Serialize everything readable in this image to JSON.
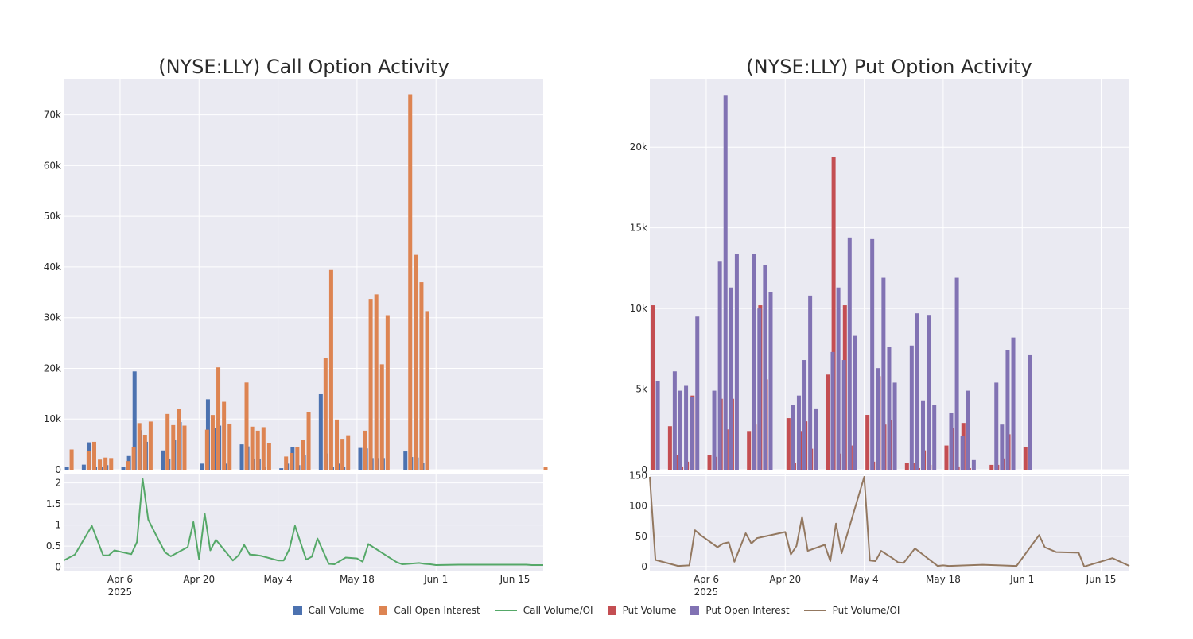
{
  "chart_data": [
    {
      "type": "bar",
      "title": "(NYSE:LLY) Call Option Activity",
      "xlabel": "",
      "ylabel": "",
      "ylim": [
        0,
        77000
      ],
      "yticks": [
        0,
        10000,
        20000,
        30000,
        40000,
        50000,
        60000,
        70000
      ],
      "ytick_labels": [
        "0",
        "10k",
        "20k",
        "30k",
        "40k",
        "50k",
        "60k",
        "70k"
      ],
      "x_tick_labels": [
        "Apr 6\n2025",
        "Apr 20",
        "May 4",
        "May 18",
        "Jun 1",
        "Jun 15"
      ],
      "x_tick_dates": [
        "2025-04-06",
        "2025-04-20",
        "2025-05-04",
        "2025-05-18",
        "2025-06-01",
        "2025-06-15"
      ],
      "x_range": [
        "2025-03-27",
        "2025-06-20"
      ],
      "grid": true,
      "series": [
        {
          "name": "Call Volume",
          "color": "#4c72b0",
          "type": "bar",
          "x": [
            "2025-03-28",
            "2025-03-31",
            "2025-04-01",
            "2025-04-02",
            "2025-04-03",
            "2025-04-04",
            "2025-04-07",
            "2025-04-08",
            "2025-04-09",
            "2025-04-10",
            "2025-04-11",
            "2025-04-14",
            "2025-04-15",
            "2025-04-16",
            "2025-04-17",
            "2025-04-21",
            "2025-04-22",
            "2025-04-23",
            "2025-04-24",
            "2025-04-25",
            "2025-04-28",
            "2025-04-29",
            "2025-04-30",
            "2025-05-01",
            "2025-05-02",
            "2025-05-05",
            "2025-05-06",
            "2025-05-07",
            "2025-05-08",
            "2025-05-09",
            "2025-05-12",
            "2025-05-13",
            "2025-05-14",
            "2025-05-15",
            "2025-05-16",
            "2025-05-19",
            "2025-05-20",
            "2025-05-21",
            "2025-05-22",
            "2025-05-23",
            "2025-05-27",
            "2025-05-28",
            "2025-05-29",
            "2025-05-30",
            "2025-06-02",
            "2025-06-03",
            "2025-06-04",
            "2025-06-05",
            "2025-06-06",
            "2025-06-09",
            "2025-06-10",
            "2025-06-11",
            "2025-06-12",
            "2025-06-13",
            "2025-06-16",
            "2025-06-17",
            "2025-06-18",
            "2025-06-20"
          ],
          "values": [
            600,
            1000,
            5400,
            500,
            600,
            900,
            500,
            2700,
            19400,
            7800,
            5500,
            3800,
            2200,
            5800,
            9400,
            1200,
            13900,
            8300,
            8700,
            1200,
            5000,
            4600,
            2200,
            2200,
            600,
            300,
            1200,
            4400,
            900,
            2900,
            14900,
            3200,
            500,
            1200,
            600,
            4300,
            4200,
            2300,
            2300,
            2300,
            3600,
            2500,
            2400,
            1300,
            0,
            0,
            0,
            0,
            0,
            0,
            0,
            0,
            0,
            0,
            0,
            0,
            0,
            0
          ]
        },
        {
          "name": "Call Open Interest",
          "color": "#dd8452",
          "type": "bar",
          "x": [
            "2025-03-28",
            "2025-03-31",
            "2025-04-01",
            "2025-04-02",
            "2025-04-03",
            "2025-04-04",
            "2025-04-07",
            "2025-04-08",
            "2025-04-09",
            "2025-04-10",
            "2025-04-11",
            "2025-04-14",
            "2025-04-15",
            "2025-04-16",
            "2025-04-17",
            "2025-04-21",
            "2025-04-22",
            "2025-04-23",
            "2025-04-24",
            "2025-04-25",
            "2025-04-28",
            "2025-04-29",
            "2025-04-30",
            "2025-05-01",
            "2025-05-02",
            "2025-05-05",
            "2025-05-06",
            "2025-05-07",
            "2025-05-08",
            "2025-05-09",
            "2025-05-12",
            "2025-05-13",
            "2025-05-14",
            "2025-05-15",
            "2025-05-16",
            "2025-05-19",
            "2025-05-20",
            "2025-05-21",
            "2025-05-22",
            "2025-05-23",
            "2025-05-27",
            "2025-05-28",
            "2025-05-29",
            "2025-05-30",
            "2025-06-02",
            "2025-06-03",
            "2025-06-04",
            "2025-06-05",
            "2025-06-06",
            "2025-06-09",
            "2025-06-10",
            "2025-06-11",
            "2025-06-12",
            "2025-06-13",
            "2025-06-16",
            "2025-06-17",
            "2025-06-18",
            "2025-06-20"
          ],
          "values": [
            4000,
            3700,
            5500,
            2000,
            2400,
            2300,
            1700,
            4500,
            9200,
            6900,
            9500,
            11000,
            8800,
            12000,
            8700,
            7900,
            10800,
            20200,
            13400,
            9100,
            17200,
            8500,
            7700,
            8400,
            5200,
            2600,
            3300,
            4500,
            5900,
            11400,
            22000,
            39400,
            9900,
            6100,
            6800,
            7700,
            33700,
            34600,
            20800,
            30500,
            74100,
            42400,
            37000,
            31300,
            0,
            0,
            0,
            0,
            0,
            0,
            0,
            0,
            0,
            0,
            0,
            0,
            0,
            600
          ]
        }
      ]
    },
    {
      "type": "line",
      "ylim": [
        -0.1,
        2.2
      ],
      "yticks": [
        0,
        0.5,
        1,
        1.5,
        2
      ],
      "ytick_labels": [
        "0",
        "0.5",
        "1",
        "1.5",
        "2"
      ],
      "series": [
        {
          "name": "Call Volume/OI",
          "color": "#55a868",
          "x": [
            "2025-03-27",
            "2025-03-29",
            "2025-04-01",
            "2025-04-03",
            "2025-04-04",
            "2025-04-05",
            "2025-04-08",
            "2025-04-09",
            "2025-04-10",
            "2025-04-11",
            "2025-04-13",
            "2025-04-14",
            "2025-04-15",
            "2025-04-18",
            "2025-04-19",
            "2025-04-20",
            "2025-04-21",
            "2025-04-22",
            "2025-04-23",
            "2025-04-26",
            "2025-04-27",
            "2025-04-28",
            "2025-04-29",
            "2025-04-30",
            "2025-05-01",
            "2025-05-04",
            "2025-05-05",
            "2025-05-06",
            "2025-05-07",
            "2025-05-09",
            "2025-05-10",
            "2025-05-11",
            "2025-05-13",
            "2025-05-14",
            "2025-05-16",
            "2025-05-18",
            "2025-05-19",
            "2025-05-20",
            "2025-05-25",
            "2025-05-26",
            "2025-05-29",
            "2025-05-30",
            "2025-05-31",
            "2025-06-01",
            "2025-06-05",
            "2025-06-11",
            "2025-06-12",
            "2025-06-16",
            "2025-06-17",
            "2025-06-18",
            "2025-06-20"
          ],
          "values": [
            0.16,
            0.3,
            0.98,
            0.28,
            0.28,
            0.4,
            0.31,
            0.6,
            2.1,
            1.13,
            0.6,
            0.35,
            0.26,
            0.48,
            1.07,
            0.19,
            1.27,
            0.4,
            0.65,
            0.16,
            0.28,
            0.53,
            0.3,
            0.29,
            0.27,
            0.16,
            0.16,
            0.43,
            0.98,
            0.18,
            0.25,
            0.68,
            0.08,
            0.07,
            0.23,
            0.21,
            0.13,
            0.55,
            0.12,
            0.07,
            0.1,
            0.08,
            0.07,
            0.05,
            0.06,
            0.06,
            0.06,
            0.06,
            0.06,
            0.05,
            0.05
          ]
        }
      ]
    },
    {
      "type": "bar",
      "title": "(NYSE:LLY) Put Option Activity",
      "ylim": [
        0,
        24200
      ],
      "yticks": [
        0,
        5000,
        10000,
        15000,
        20000
      ],
      "ytick_labels": [
        "0",
        "5k",
        "10k",
        "15k",
        "20k"
      ],
      "x_tick_labels": [
        "Apr 6\n2025",
        "Apr 20",
        "May 4",
        "May 18",
        "Jun 1",
        "Jun 15"
      ],
      "x_tick_dates": [
        "2025-04-06",
        "2025-04-20",
        "2025-05-04",
        "2025-05-18",
        "2025-06-01",
        "2025-06-15"
      ],
      "x_range": [
        "2025-03-27",
        "2025-06-20"
      ],
      "grid": true,
      "series": [
        {
          "name": "Put Volume",
          "color": "#c44e52",
          "type": "bar",
          "x": [
            "2025-03-28",
            "2025-03-31",
            "2025-04-01",
            "2025-04-02",
            "2025-04-03",
            "2025-04-04",
            "2025-04-07",
            "2025-04-08",
            "2025-04-09",
            "2025-04-10",
            "2025-04-11",
            "2025-04-14",
            "2025-04-15",
            "2025-04-16",
            "2025-04-17",
            "2025-04-21",
            "2025-04-22",
            "2025-04-23",
            "2025-04-24",
            "2025-04-25",
            "2025-04-28",
            "2025-04-29",
            "2025-04-30",
            "2025-05-01",
            "2025-05-02",
            "2025-05-05",
            "2025-05-06",
            "2025-05-07",
            "2025-05-08",
            "2025-05-09",
            "2025-05-12",
            "2025-05-13",
            "2025-05-14",
            "2025-05-15",
            "2025-05-16",
            "2025-05-19",
            "2025-05-20",
            "2025-05-21",
            "2025-05-22",
            "2025-05-23",
            "2025-05-27",
            "2025-05-28",
            "2025-05-29",
            "2025-05-30",
            "2025-06-02",
            "2025-06-03",
            "2025-06-04",
            "2025-06-05",
            "2025-06-06",
            "2025-06-09",
            "2025-06-10",
            "2025-06-11",
            "2025-06-12",
            "2025-06-13",
            "2025-06-16",
            "2025-06-17",
            "2025-06-18",
            "2025-06-20"
          ],
          "values": [
            10200,
            2700,
            900,
            200,
            500,
            4600,
            900,
            800,
            4400,
            2500,
            4400,
            2400,
            2800,
            10200,
            5600,
            3200,
            400,
            2400,
            3000,
            1300,
            5900,
            19400,
            1000,
            10200,
            1500,
            3400,
            500,
            5800,
            2800,
            3100,
            400,
            400,
            100,
            1200,
            300,
            1500,
            2600,
            200,
            2900,
            100,
            300,
            300,
            700,
            2200,
            1400,
            0,
            0,
            0,
            0,
            0,
            0,
            0,
            0,
            0,
            0,
            0,
            0,
            0
          ]
        },
        {
          "name": "Put Open Interest",
          "color": "#8172b3",
          "type": "bar",
          "x": [
            "2025-03-28",
            "2025-03-31",
            "2025-04-01",
            "2025-04-02",
            "2025-04-03",
            "2025-04-04",
            "2025-04-07",
            "2025-04-08",
            "2025-04-09",
            "2025-04-10",
            "2025-04-11",
            "2025-04-14",
            "2025-04-15",
            "2025-04-16",
            "2025-04-17",
            "2025-04-21",
            "2025-04-22",
            "2025-04-23",
            "2025-04-24",
            "2025-04-25",
            "2025-04-28",
            "2025-04-29",
            "2025-04-30",
            "2025-05-01",
            "2025-05-02",
            "2025-05-05",
            "2025-05-06",
            "2025-05-07",
            "2025-05-08",
            "2025-05-09",
            "2025-05-12",
            "2025-05-13",
            "2025-05-14",
            "2025-05-15",
            "2025-05-16",
            "2025-05-19",
            "2025-05-20",
            "2025-05-21",
            "2025-05-22",
            "2025-05-23",
            "2025-05-27",
            "2025-05-28",
            "2025-05-29",
            "2025-05-30",
            "2025-06-02",
            "2025-06-03",
            "2025-06-04",
            "2025-06-05",
            "2025-06-06",
            "2025-06-09",
            "2025-06-10",
            "2025-06-11",
            "2025-06-12",
            "2025-06-13",
            "2025-06-16",
            "2025-06-17",
            "2025-06-18",
            "2025-06-20"
          ],
          "values": [
            5500,
            6100,
            4900,
            5200,
            4500,
            9500,
            4900,
            12900,
            23200,
            11300,
            13400,
            13400,
            10000,
            12700,
            11000,
            4000,
            4600,
            6800,
            10800,
            3800,
            7300,
            11300,
            6800,
            14400,
            8300,
            14300,
            6300,
            11900,
            7600,
            5400,
            7700,
            9700,
            4300,
            9600,
            4000,
            3500,
            11900,
            2100,
            4900,
            600,
            5400,
            2800,
            7400,
            8200,
            7100,
            0,
            0,
            0,
            0,
            0,
            0,
            0,
            0,
            0,
            0,
            0,
            0,
            0
          ]
        }
      ]
    },
    {
      "type": "line",
      "ylim": [
        -8,
        152
      ],
      "yticks": [
        0,
        50,
        100,
        150
      ],
      "ytick_labels": [
        "0",
        "50",
        "100",
        "150"
      ],
      "series": [
        {
          "name": "Put Volume/OI",
          "color": "#937860",
          "x": [
            "2025-03-27",
            "2025-03-28",
            "2025-04-01",
            "2025-04-03",
            "2025-04-04",
            "2025-04-05",
            "2025-04-08",
            "2025-04-09",
            "2025-04-10",
            "2025-04-11",
            "2025-04-13",
            "2025-04-14",
            "2025-04-15",
            "2025-04-20",
            "2025-04-21",
            "2025-04-22",
            "2025-04-23",
            "2025-04-24",
            "2025-04-27",
            "2025-04-28",
            "2025-04-29",
            "2025-04-30",
            "2025-05-04",
            "2025-05-05",
            "2025-05-06",
            "2025-05-07",
            "2025-05-09",
            "2025-05-10",
            "2025-05-11",
            "2025-05-13",
            "2025-05-17",
            "2025-05-18",
            "2025-05-19",
            "2025-05-25",
            "2025-05-31",
            "2025-06-04",
            "2025-06-05",
            "2025-06-07",
            "2025-06-11",
            "2025-06-12",
            "2025-06-17",
            "2025-06-20"
          ],
          "values": [
            148,
            11,
            1,
            2,
            60,
            52,
            32,
            38,
            40,
            8,
            55,
            38,
            47,
            57,
            20,
            34,
            82,
            26,
            36,
            9,
            71,
            22,
            148,
            10,
            9,
            26,
            14,
            7,
            6,
            30,
            1,
            2,
            1,
            3,
            1,
            52,
            32,
            24,
            23,
            0,
            14,
            1
          ]
        }
      ]
    }
  ],
  "legend": {
    "items": [
      {
        "label": "Call Volume",
        "color": "#4c72b0",
        "kind": "square"
      },
      {
        "label": "Call Open Interest",
        "color": "#dd8452",
        "kind": "square"
      },
      {
        "label": "Call Volume/OI",
        "color": "#55a868",
        "kind": "line"
      },
      {
        "label": "Put Volume",
        "color": "#c44e52",
        "kind": "square"
      },
      {
        "label": "Put Open Interest",
        "color": "#8172b3",
        "kind": "square"
      },
      {
        "label": "Put Volume/OI",
        "color": "#937860",
        "kind": "line"
      }
    ]
  }
}
